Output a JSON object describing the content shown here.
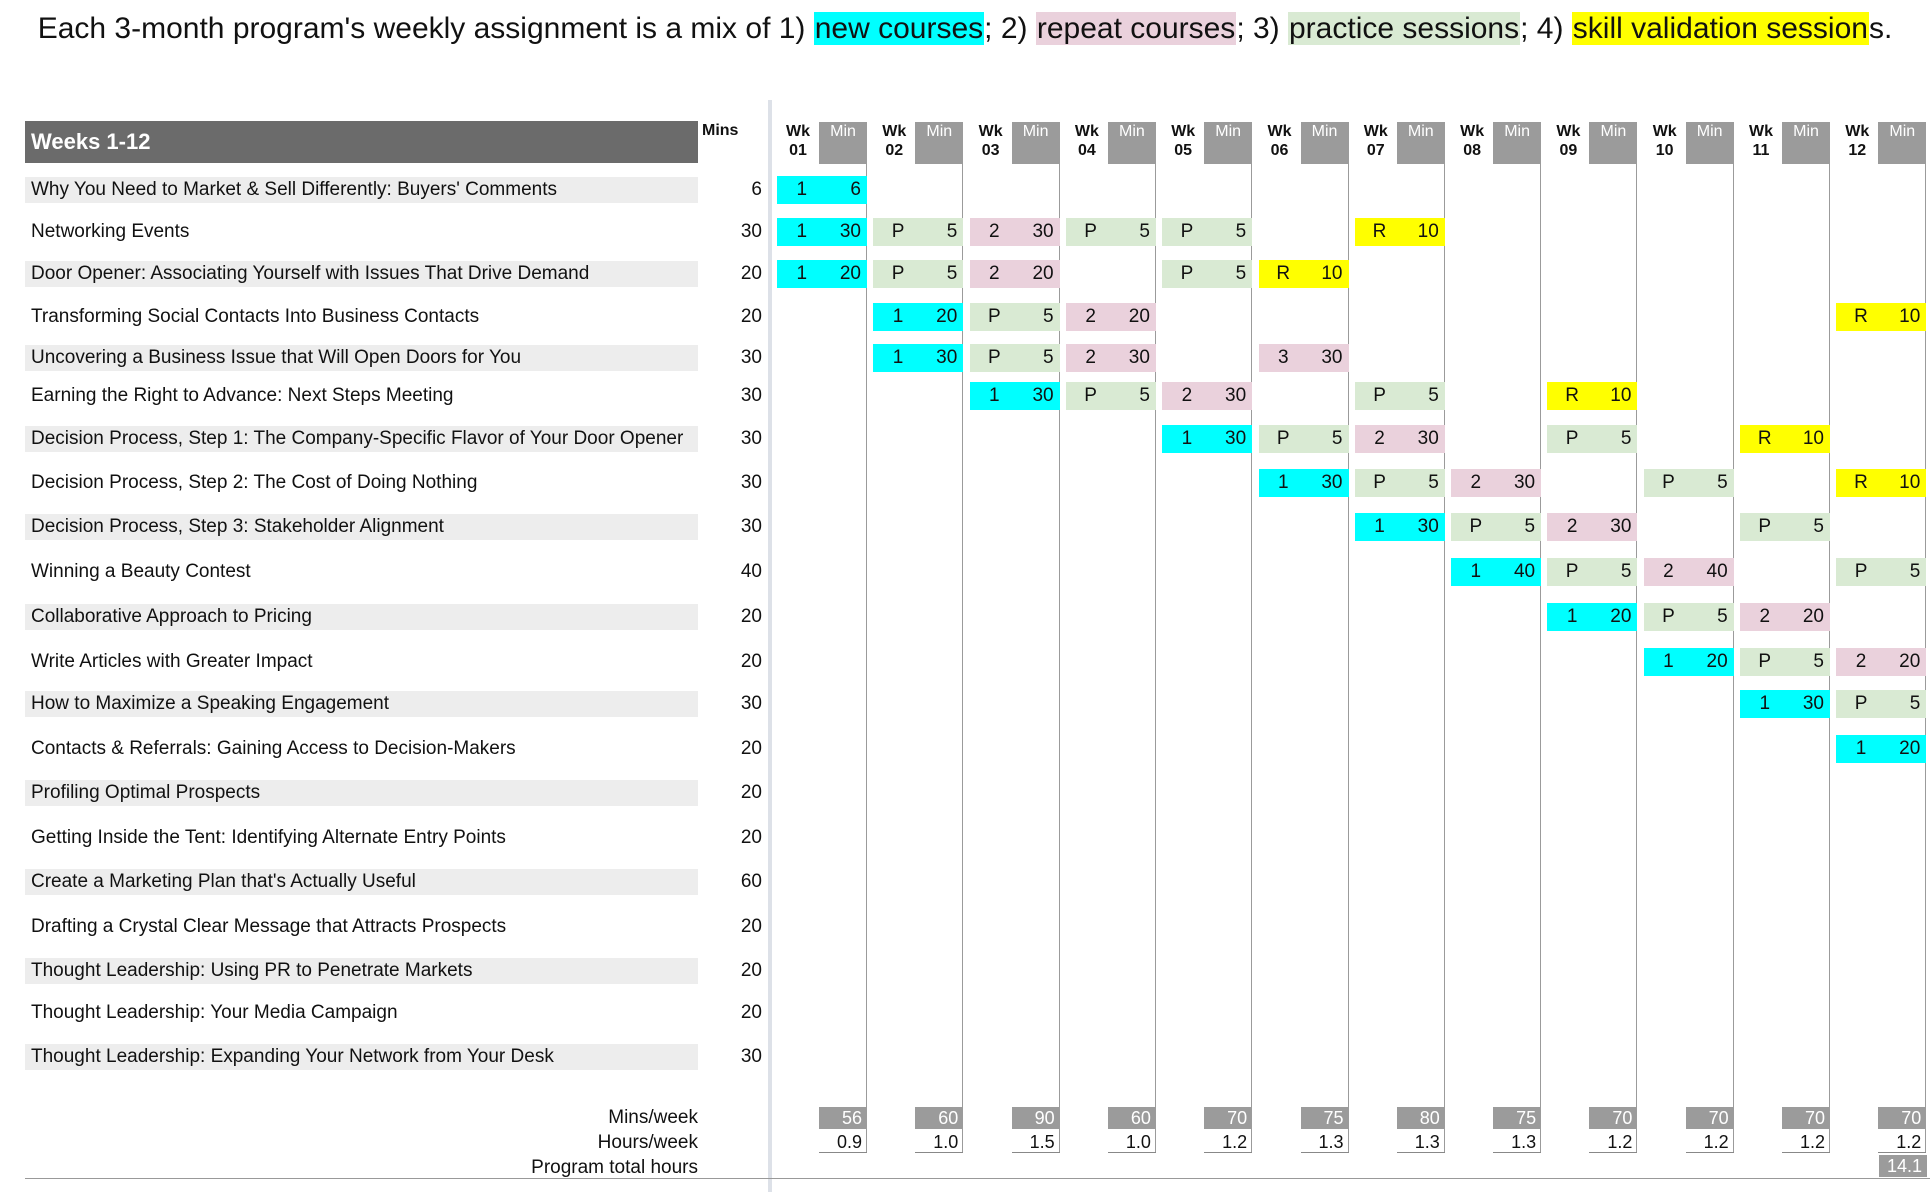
{
  "title": {
    "prefix": "Each 3-month program's weekly assignment is a mix of 1) ",
    "new": "new courses",
    "sep2": "; 2) ",
    "repeat": "repeat courses",
    "sep3": "; 3) ",
    "practice": "practice sessions",
    "sep4": "; 4) ",
    "validation": "skill validation session",
    "suffix": "s."
  },
  "colors": {
    "new": "#00ffff",
    "repeat": "#ead1dc",
    "practice": "#d9ead3",
    "validation": "#ffff00",
    "header_dark": "#6b6b6b",
    "header_gray": "#9b9b9b"
  },
  "header": {
    "weeks_label": "Weeks 1-12",
    "mins_label": "Mins",
    "wk_label": "Wk",
    "min_label": "Min"
  },
  "weeks": [
    "01",
    "02",
    "03",
    "04",
    "05",
    "06",
    "07",
    "08",
    "09",
    "10",
    "11",
    "12"
  ],
  "courses": [
    {
      "name": "Why You Need to Market & Sell Differently: Buyers' Comments",
      "mins": "6",
      "cells": [
        {
          "week": 1,
          "type": "new",
          "code": "1",
          "min": "6"
        }
      ]
    },
    {
      "name": "Networking Events",
      "mins": "30",
      "cells": [
        {
          "week": 1,
          "type": "new",
          "code": "1",
          "min": "30"
        },
        {
          "week": 2,
          "type": "practice",
          "code": "P",
          "min": "5"
        },
        {
          "week": 3,
          "type": "repeat",
          "code": "2",
          "min": "30"
        },
        {
          "week": 4,
          "type": "practice",
          "code": "P",
          "min": "5"
        },
        {
          "week": 5,
          "type": "practice",
          "code": "P",
          "min": "5"
        },
        {
          "week": 7,
          "type": "validation",
          "code": "R",
          "min": "10"
        }
      ]
    },
    {
      "name": "Door Opener: Associating Yourself with Issues That Drive Demand",
      "mins": "20",
      "cells": [
        {
          "week": 1,
          "type": "new",
          "code": "1",
          "min": "20"
        },
        {
          "week": 2,
          "type": "practice",
          "code": "P",
          "min": "5"
        },
        {
          "week": 3,
          "type": "repeat",
          "code": "2",
          "min": "20"
        },
        {
          "week": 5,
          "type": "practice",
          "code": "P",
          "min": "5"
        },
        {
          "week": 6,
          "type": "validation",
          "code": "R",
          "min": "10"
        }
      ]
    },
    {
      "name": "Transforming Social Contacts Into Business Contacts",
      "mins": "20",
      "cells": [
        {
          "week": 2,
          "type": "new",
          "code": "1",
          "min": "20"
        },
        {
          "week": 3,
          "type": "practice",
          "code": "P",
          "min": "5"
        },
        {
          "week": 4,
          "type": "repeat",
          "code": "2",
          "min": "20"
        },
        {
          "week": 12,
          "type": "validation",
          "code": "R",
          "min": "10"
        }
      ]
    },
    {
      "name": "Uncovering a Business Issue that Will Open Doors for You",
      "mins": "30",
      "cells": [
        {
          "week": 2,
          "type": "new",
          "code": "1",
          "min": "30"
        },
        {
          "week": 3,
          "type": "practice",
          "code": "P",
          "min": "5"
        },
        {
          "week": 4,
          "type": "repeat",
          "code": "2",
          "min": "30"
        },
        {
          "week": 6,
          "type": "repeat",
          "code": "3",
          "min": "30"
        }
      ]
    },
    {
      "name": "Earning the Right to Advance: Next Steps Meeting",
      "mins": "30",
      "cells": [
        {
          "week": 3,
          "type": "new",
          "code": "1",
          "min": "30"
        },
        {
          "week": 4,
          "type": "practice",
          "code": "P",
          "min": "5"
        },
        {
          "week": 5,
          "type": "repeat",
          "code": "2",
          "min": "30"
        },
        {
          "week": 7,
          "type": "practice",
          "code": "P",
          "min": "5"
        },
        {
          "week": 9,
          "type": "validation",
          "code": "R",
          "min": "10"
        }
      ]
    },
    {
      "name": "Decision Process, Step 1: The Company-Specific Flavor of Your Door Opener",
      "mins": "30",
      "cells": [
        {
          "week": 5,
          "type": "new",
          "code": "1",
          "min": "30"
        },
        {
          "week": 6,
          "type": "practice",
          "code": "P",
          "min": "5"
        },
        {
          "week": 7,
          "type": "repeat",
          "code": "2",
          "min": "30"
        },
        {
          "week": 9,
          "type": "practice",
          "code": "P",
          "min": "5"
        },
        {
          "week": 11,
          "type": "validation",
          "code": "R",
          "min": "10"
        }
      ]
    },
    {
      "name": "Decision Process, Step 2: The Cost of Doing Nothing",
      "mins": "30",
      "cells": [
        {
          "week": 6,
          "type": "new",
          "code": "1",
          "min": "30"
        },
        {
          "week": 7,
          "type": "practice",
          "code": "P",
          "min": "5"
        },
        {
          "week": 8,
          "type": "repeat",
          "code": "2",
          "min": "30"
        },
        {
          "week": 10,
          "type": "practice",
          "code": "P",
          "min": "5"
        },
        {
          "week": 12,
          "type": "validation",
          "code": "R",
          "min": "10"
        }
      ]
    },
    {
      "name": "Decision Process, Step 3: Stakeholder Alignment",
      "mins": "30",
      "cells": [
        {
          "week": 7,
          "type": "new",
          "code": "1",
          "min": "30"
        },
        {
          "week": 8,
          "type": "practice",
          "code": "P",
          "min": "5"
        },
        {
          "week": 9,
          "type": "repeat",
          "code": "2",
          "min": "30"
        },
        {
          "week": 11,
          "type": "practice",
          "code": "P",
          "min": "5"
        }
      ]
    },
    {
      "name": "Winning a Beauty Contest",
      "mins": "40",
      "cells": [
        {
          "week": 8,
          "type": "new",
          "code": "1",
          "min": "40"
        },
        {
          "week": 9,
          "type": "practice",
          "code": "P",
          "min": "5"
        },
        {
          "week": 10,
          "type": "repeat",
          "code": "2",
          "min": "40"
        },
        {
          "week": 12,
          "type": "practice",
          "code": "P",
          "min": "5"
        }
      ]
    },
    {
      "name": "Collaborative Approach to Pricing",
      "mins": "20",
      "cells": [
        {
          "week": 9,
          "type": "new",
          "code": "1",
          "min": "20"
        },
        {
          "week": 10,
          "type": "practice",
          "code": "P",
          "min": "5"
        },
        {
          "week": 11,
          "type": "repeat",
          "code": "2",
          "min": "20"
        }
      ]
    },
    {
      "name": "Write Articles with Greater Impact",
      "mins": "20",
      "cells": [
        {
          "week": 10,
          "type": "new",
          "code": "1",
          "min": "20"
        },
        {
          "week": 11,
          "type": "practice",
          "code": "P",
          "min": "5"
        },
        {
          "week": 12,
          "type": "repeat",
          "code": "2",
          "min": "20"
        }
      ]
    },
    {
      "name": "How to Maximize a Speaking Engagement",
      "mins": "30",
      "cells": [
        {
          "week": 11,
          "type": "new",
          "code": "1",
          "min": "30"
        },
        {
          "week": 12,
          "type": "practice",
          "code": "P",
          "min": "5"
        }
      ]
    },
    {
      "name": "Contacts & Referrals: Gaining Access to Decision-Makers",
      "mins": "20",
      "cells": [
        {
          "week": 12,
          "type": "new",
          "code": "1",
          "min": "20"
        }
      ]
    },
    {
      "name": "Profiling Optimal Prospects",
      "mins": "20",
      "cells": []
    },
    {
      "name": "Getting Inside the Tent: Identifying Alternate Entry Points",
      "mins": "20",
      "cells": []
    },
    {
      "name": "Create a Marketing Plan that's Actually Useful",
      "mins": "60",
      "cells": []
    },
    {
      "name": "Drafting a Crystal Clear Message that Attracts Prospects",
      "mins": "20",
      "cells": []
    },
    {
      "name": "Thought Leadership: Using PR to Penetrate Markets",
      "mins": "20",
      "cells": []
    },
    {
      "name": "Thought Leadership: Your Media Campaign",
      "mins": "20",
      "cells": []
    },
    {
      "name": "Thought Leadership: Expanding Your Network from Your Desk",
      "mins": "30",
      "cells": []
    }
  ],
  "footer": {
    "mins_week_label": "Mins/week",
    "hours_week_label": "Hours/week",
    "total_label": "Program total hours",
    "mins_per_week": [
      "56",
      "60",
      "90",
      "60",
      "70",
      "75",
      "80",
      "75",
      "70",
      "70",
      "70",
      "70"
    ],
    "hours_per_week": [
      "0.9",
      "1.0",
      "1.5",
      "1.0",
      "1.2",
      "1.3",
      "1.3",
      "1.3",
      "1.2",
      "1.2",
      "1.2",
      "1.2"
    ],
    "total_hours": "14.1"
  }
}
